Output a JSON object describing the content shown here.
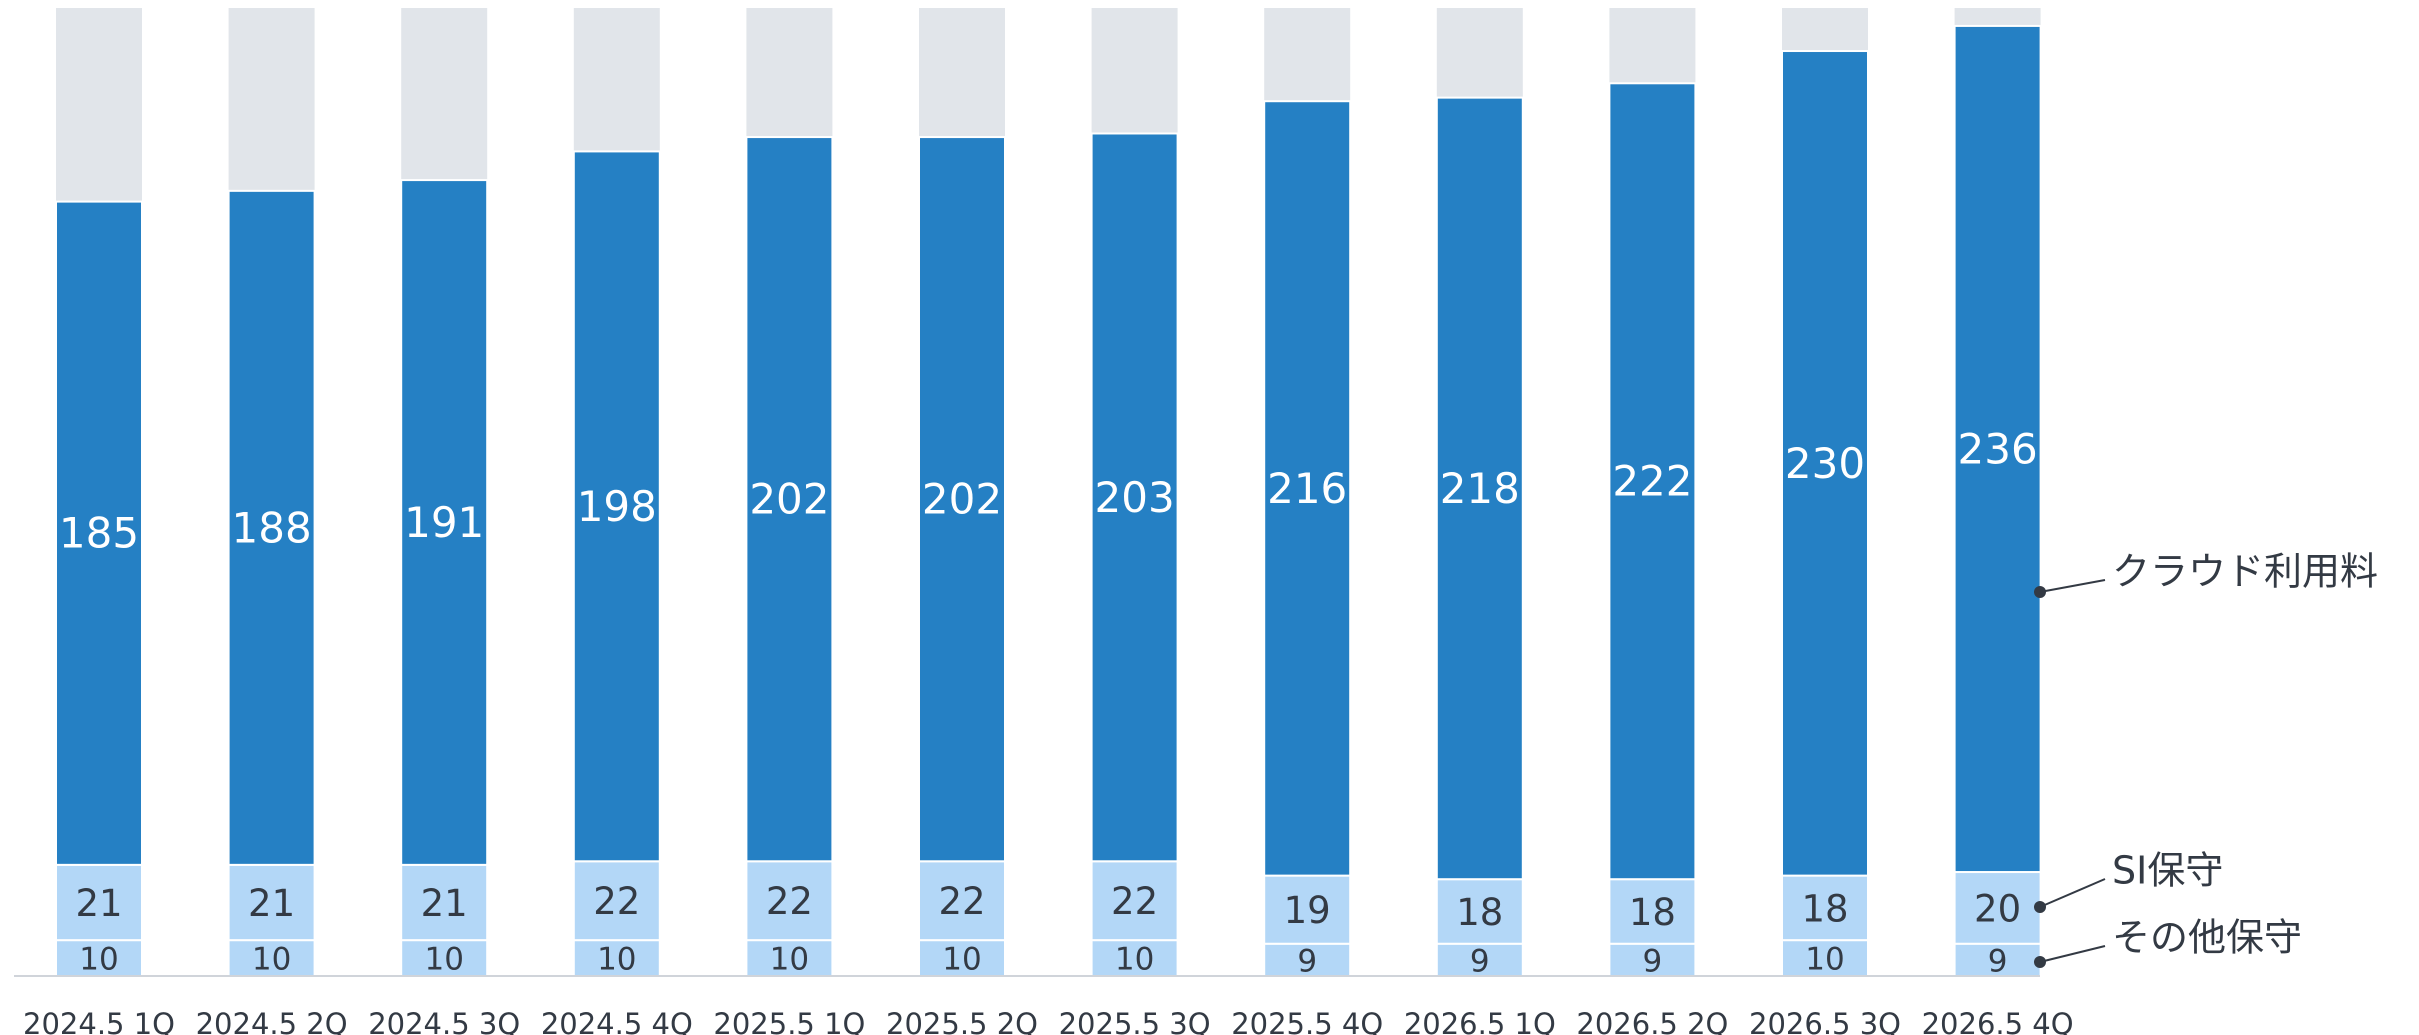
{
  "chart_data": {
    "type": "stacked_bar",
    "categories": [
      "2024.5 1Q",
      "2024.5 2Q",
      "2024.5 3Q",
      "2024.5 4Q",
      "2025.5 1Q",
      "2025.5 2Q",
      "2025.5 3Q",
      "2025.5 4Q",
      "2026.5 1Q",
      "2026.5 2Q",
      "2026.5 3Q",
      "2026.5 4Q"
    ],
    "series": [
      {
        "name": "その他保守",
        "color": "#b3d7f7",
        "values": [
          10,
          10,
          10,
          10,
          10,
          10,
          10,
          9,
          9,
          9,
          10,
          9
        ]
      },
      {
        "name": "SI保守",
        "color": "#b3d7f7",
        "values": [
          21,
          21,
          21,
          22,
          22,
          22,
          22,
          19,
          18,
          18,
          18,
          20
        ]
      },
      {
        "name": "クラウド利用料",
        "color": "#2580c4",
        "values": [
          185,
          188,
          191,
          198,
          202,
          202,
          203,
          216,
          218,
          222,
          230,
          236
        ]
      }
    ],
    "ylim": [
      0,
      270
    ]
  }
}
